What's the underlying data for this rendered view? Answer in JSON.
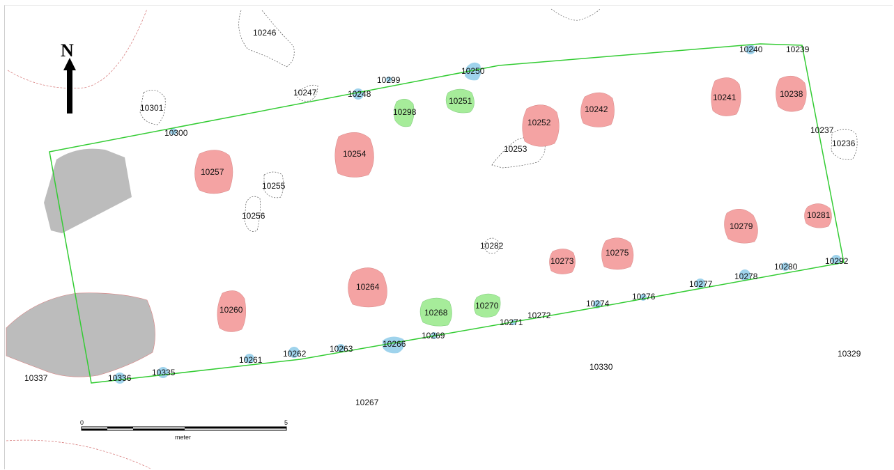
{
  "map": {
    "north_label": "N",
    "scale": {
      "start": "0",
      "end": "5",
      "unit": "meter"
    },
    "colors": {
      "red_feature": "#f4a3a3",
      "green_feature": "#a6ec9a",
      "blue_feature": "#9fd3ec",
      "gray_area": "#bcbcbc",
      "trench_outline": "#33cc33"
    },
    "features": {
      "f10236": "10236",
      "f10237": "10237",
      "f10238": "10238",
      "f10239": "10239",
      "f10240": "10240",
      "f10241": "10241",
      "f10242": "10242",
      "f10246": "10246",
      "f10247": "10247",
      "f10248": "10248",
      "f10250": "10250",
      "f10251": "10251",
      "f10252": "10252",
      "f10253": "10253",
      "f10254": "10254",
      "f10255": "10255",
      "f10256": "10256",
      "f10257": "10257",
      "f10260": "10260",
      "f10261": "10261",
      "f10262": "10262",
      "f10263": "10263",
      "f10264": "10264",
      "f10266": "10266",
      "f10267": "10267",
      "f10268": "10268",
      "f10269": "10269",
      "f10270": "10270",
      "f10271": "10271",
      "f10272": "10272",
      "f10273": "10273",
      "f10274": "10274",
      "f10275": "10275",
      "f10276": "10276",
      "f10277": "10277",
      "f10278": "10278",
      "f10279": "10279",
      "f10280": "10280",
      "f10281": "10281",
      "f10282": "10282",
      "f10292": "10292",
      "f10298": "10298",
      "f10299": "10299",
      "f10300": "10300",
      "f10301": "10301",
      "f10329": "10329",
      "f10330": "10330",
      "f10335": "10335",
      "f10336": "10336",
      "f10337": "10337"
    }
  }
}
